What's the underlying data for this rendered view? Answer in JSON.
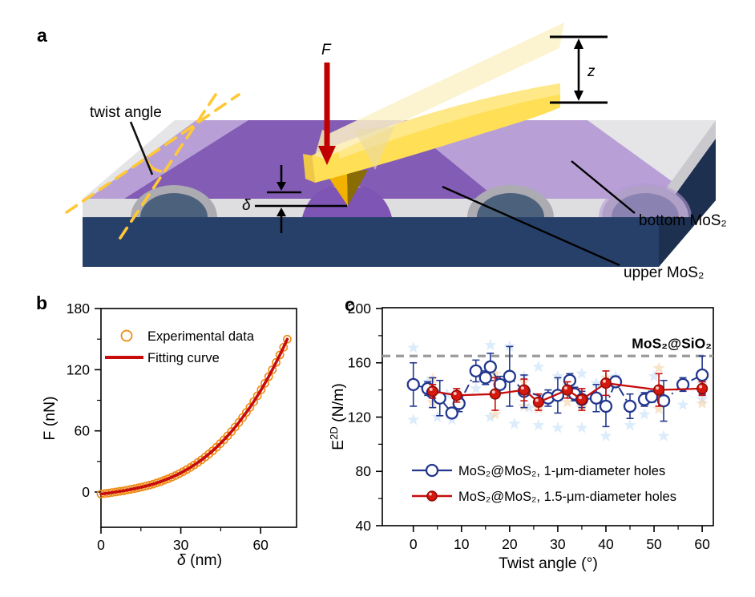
{
  "figure": {
    "letters": {
      "a": "a",
      "b": "b",
      "c": "c"
    }
  },
  "panel_a": {
    "labels": {
      "twist_angle": "twist angle",
      "force": "F",
      "z": "z",
      "delta": "δ",
      "bottom_mos2": "bottom MoS₂",
      "upper_mos2": "upper MoS₂"
    },
    "colors": {
      "substrate_top": "#E5E5E7",
      "substrate_front_grey": "#DEDEE1",
      "substrate_front_navy": "#27406A",
      "substrate_side_navy": "#1D3050",
      "hole_rim": "#ABABB1",
      "hole_navy": "#4C617C",
      "bottom_sheet": "#B49AD6",
      "upper_sheet": "#8159B4",
      "cantilever": "#FFDF55",
      "cantilever_highlight": "#FFE98D",
      "cantilever_ghost": "#FBF1C8",
      "tip_gold": "#F3B100",
      "tip_dark": "#8A6C04",
      "force_arrow": "#C00000",
      "twist_dash": "#FFC837"
    }
  },
  "chart_data": [
    {
      "panel": "b",
      "type": "scatter",
      "xlabel_italic": "δ",
      "xlabel_rest": " (nm)",
      "ylabel": "F (nN)",
      "xlim": [
        0,
        73.5
      ],
      "ylim": [
        -34.5,
        180
      ],
      "xticks": [
        0,
        30,
        60
      ],
      "xminor": [
        15,
        45
      ],
      "yticks": [
        0,
        60,
        120,
        180
      ],
      "yminor": [
        30,
        90,
        150
      ],
      "grid": false,
      "legend_position": "top-left",
      "series": [
        {
          "name": "Experimental data",
          "marker": "open-circle",
          "color": "#EE8A13"
        },
        {
          "name": "Fitting curve",
          "marker": "line",
          "color": "#C60C0C"
        }
      ],
      "points": [
        [
          0,
          -2.0
        ],
        [
          1.4,
          -1.5
        ],
        [
          2.8,
          -1.0
        ],
        [
          4.2,
          -0.5
        ],
        [
          5.6,
          0.1
        ],
        [
          7.0,
          0.6
        ],
        [
          8.4,
          1.2
        ],
        [
          9.8,
          1.9
        ],
        [
          11.2,
          2.6
        ],
        [
          12.6,
          3.3
        ],
        [
          14.0,
          4.1
        ],
        [
          15.4,
          4.9
        ],
        [
          16.8,
          5.8
        ],
        [
          18.2,
          6.8
        ],
        [
          19.6,
          7.8
        ],
        [
          21.0,
          9.0
        ],
        [
          22.4,
          10.2
        ],
        [
          23.8,
          11.6
        ],
        [
          25.2,
          13.0
        ],
        [
          26.6,
          14.6
        ],
        [
          28.0,
          16.2
        ],
        [
          29.4,
          18.0
        ],
        [
          30.8,
          19.9
        ],
        [
          32.2,
          22.0
        ],
        [
          33.6,
          24.1
        ],
        [
          35.0,
          26.5
        ],
        [
          36.4,
          28.9
        ],
        [
          37.8,
          31.6
        ],
        [
          39.2,
          34.4
        ],
        [
          40.6,
          37.4
        ],
        [
          42.0,
          40.5
        ],
        [
          43.4,
          43.9
        ],
        [
          44.8,
          47.4
        ],
        [
          46.2,
          51.2
        ],
        [
          47.6,
          55.1
        ],
        [
          49.0,
          59.2
        ],
        [
          50.4,
          63.6
        ],
        [
          51.8,
          68.2
        ],
        [
          53.2,
          73.0
        ],
        [
          54.6,
          78.1
        ],
        [
          56.0,
          83.1
        ],
        [
          57.4,
          88.7
        ],
        [
          58.8,
          94.4
        ],
        [
          60.2,
          100.4
        ],
        [
          61.6,
          106.7
        ],
        [
          63.0,
          113.2
        ],
        [
          64.4,
          120.0
        ],
        [
          65.8,
          127.1
        ],
        [
          67.2,
          134.4
        ],
        [
          68.6,
          142.0
        ],
        [
          70.0,
          149.9
        ]
      ]
    },
    {
      "panel": "c",
      "type": "scatter-errorbar",
      "xlabel": "Twist angle (°)",
      "ylabel_base": "E",
      "ylabel_sup": "2D",
      "ylabel_rest": " (N/m)",
      "xlim": [
        -6.4,
        62.3
      ],
      "ylim": [
        40,
        200.6
      ],
      "xticks": [
        0,
        10,
        20,
        30,
        40,
        50,
        60
      ],
      "xminor": [
        5,
        15,
        25,
        35,
        45,
        55
      ],
      "yticks": [
        40,
        80,
        120,
        160,
        200
      ],
      "yminor": [
        60,
        100,
        140,
        180
      ],
      "reference_line": {
        "value": 165,
        "label": "MoS₂@SiO₂",
        "color": "#9A9A9A",
        "label_color": "#8F8F8F"
      },
      "series": [
        {
          "name": "MoS₂@MoS₂, 1-μm-diameter holes",
          "marker": "open-circle",
          "line_style": "dash-dot",
          "color": "#22378E",
          "points": [
            [
              0,
              144,
              16
            ],
            [
              3,
              141,
              5
            ],
            [
              4,
              138,
              11
            ],
            [
              5.5,
              134,
              13
            ],
            [
              8,
              123,
              3
            ],
            [
              9.5,
              130,
              6
            ],
            [
              13,
              154,
              8
            ],
            [
              15,
              149,
              5
            ],
            [
              16,
              157,
              10
            ],
            [
              18,
              144,
              6
            ],
            [
              20,
              150,
              22
            ],
            [
              23,
              139,
              12
            ],
            [
              28,
              134,
              6
            ],
            [
              30,
              136,
              13
            ],
            [
              32.5,
              147,
              5
            ],
            [
              33.5,
              137,
              5
            ],
            [
              35,
              133,
              6
            ],
            [
              38,
              134,
              10
            ],
            [
              40,
              128,
              15
            ],
            [
              42,
              146,
              4
            ],
            [
              45,
              128,
              9
            ],
            [
              48,
              133,
              5
            ],
            [
              49.5,
              135,
              4
            ],
            [
              52,
              132,
              15
            ],
            [
              56,
              144,
              5
            ],
            [
              60,
              151,
              14
            ]
          ]
        },
        {
          "name": "MoS₂@MoS₂, 1.5-μm-diameter holes",
          "marker": "filled-circle",
          "line_style": "solid",
          "color": "#C60C0C",
          "fill": "#D6190F",
          "edge": "#8F0A05",
          "points": [
            [
              4,
              139,
              5
            ],
            [
              9,
              136,
              5
            ],
            [
              17,
              137,
              12
            ],
            [
              23,
              140,
              8
            ],
            [
              26,
              131,
              6
            ],
            [
              32,
              140,
              6
            ],
            [
              35,
              133,
              8
            ],
            [
              40,
              145,
              9
            ],
            [
              51,
              140,
              12
            ],
            [
              60,
              141,
              5
            ]
          ]
        }
      ],
      "background_scatter": {
        "blue_color": "#BFDCF5",
        "orange_color": "#F4C894",
        "blue_stars": [
          [
            0,
            171
          ],
          [
            0,
            118
          ],
          [
            3,
            146
          ],
          [
            5,
            120
          ],
          [
            7,
            137
          ],
          [
            8,
            118
          ],
          [
            13,
            141
          ],
          [
            16,
            173
          ],
          [
            16,
            120
          ],
          [
            20,
            172
          ],
          [
            21,
            115
          ],
          [
            23,
            150
          ],
          [
            24,
            127
          ],
          [
            26,
            157
          ],
          [
            26,
            114
          ],
          [
            30,
            150
          ],
          [
            30,
            112
          ],
          [
            32,
            143
          ],
          [
            35,
            152
          ],
          [
            35,
            112
          ],
          [
            38,
            145
          ],
          [
            40,
            106
          ],
          [
            42,
            150
          ],
          [
            45,
            114
          ],
          [
            48,
            122
          ],
          [
            50,
            150
          ],
          [
            52,
            106
          ],
          [
            56,
            129
          ],
          [
            60,
            144
          ],
          [
            60,
            133
          ]
        ],
        "orange_stars": [
          [
            4,
            148
          ],
          [
            4,
            131
          ],
          [
            9,
            128
          ],
          [
            17,
            152
          ],
          [
            17,
            122
          ],
          [
            23,
            146
          ],
          [
            23,
            128
          ],
          [
            26,
            126
          ],
          [
            32,
            145
          ],
          [
            32,
            131
          ],
          [
            35,
            127
          ],
          [
            40,
            149
          ],
          [
            51,
            156
          ],
          [
            51,
            126
          ],
          [
            60,
            146
          ],
          [
            60,
            130
          ]
        ]
      }
    }
  ]
}
